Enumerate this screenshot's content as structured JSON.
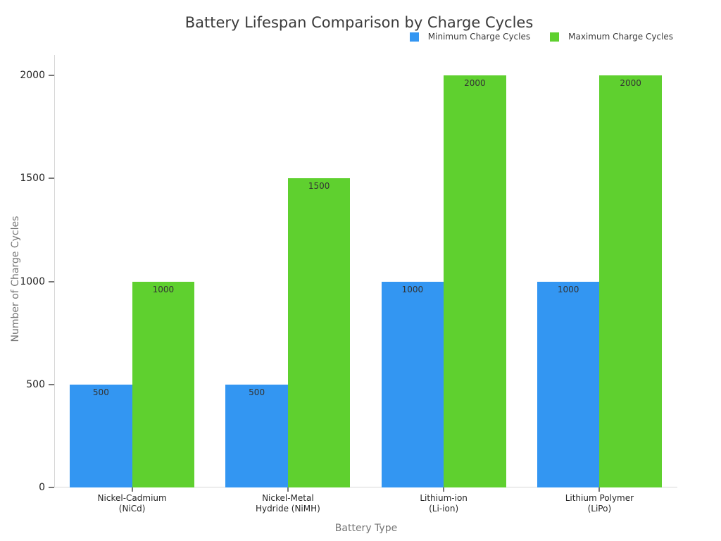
{
  "chart_data": {
    "type": "bar",
    "title": "Battery Lifespan Comparison by Charge Cycles",
    "xlabel": "Battery Type",
    "ylabel": "Number of Charge Cycles",
    "categories": [
      "Nickel-Cadmium (NiCd)",
      "Nickel-Metal Hydride (NiMH)",
      "Lithium-ion (Li-ion)",
      "Lithium Polymer (LiPo)"
    ],
    "category_lines": [
      [
        "Nickel-Cadmium",
        "(NiCd)"
      ],
      [
        "Nickel-Metal",
        "Hydride (NiMH)"
      ],
      [
        "Lithium-ion",
        "(Li-ion)"
      ],
      [
        "Lithium Polymer",
        "(LiPo)"
      ]
    ],
    "series": [
      {
        "name": "Minimum Charge Cycles",
        "color": "#3396f2",
        "values": [
          500,
          500,
          1000,
          1000
        ]
      },
      {
        "name": "Maximum Charge Cycles",
        "color": "#5fd02f",
        "values": [
          1000,
          1500,
          2000,
          2000
        ]
      }
    ],
    "yticks": [
      0,
      500,
      1000,
      1500,
      2000
    ],
    "ylim": [
      0,
      2100
    ],
    "bar_value_labels": true,
    "legend_position": "top-right",
    "grid": false,
    "background": "#ffffff"
  }
}
